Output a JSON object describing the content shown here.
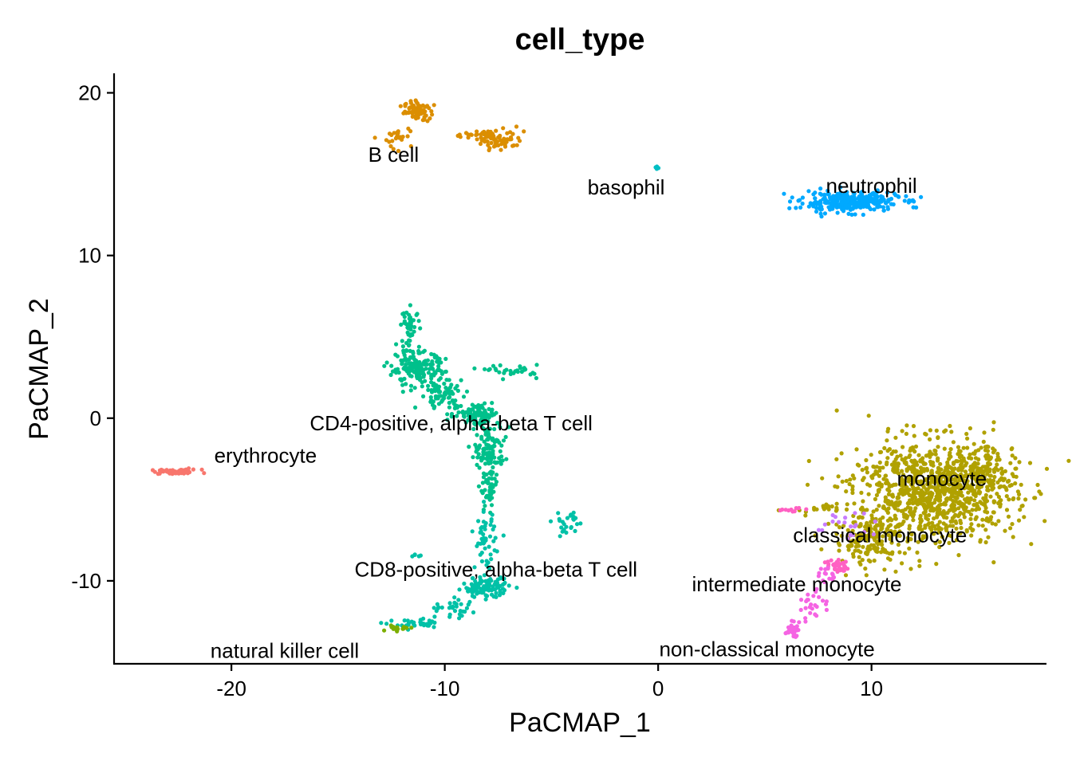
{
  "chart_data": {
    "type": "scatter",
    "title": "cell_type",
    "xlabel": "PaCMAP_1",
    "ylabel": "PaCMAP_2",
    "xlim": [
      -25.5,
      18.2
    ],
    "ylim": [
      -15.1,
      21.2
    ],
    "x_ticks": [
      -20,
      -10,
      0,
      10
    ],
    "y_ticks": [
      20,
      10,
      0,
      -10
    ],
    "x_tick_labels": [
      "-20",
      "-10",
      "0",
      "10"
    ],
    "y_tick_labels": [
      "20",
      "10",
      "0",
      "-10"
    ],
    "grid": false,
    "legend": "none",
    "series": [
      {
        "name": "erythrocyte",
        "color": "#F8766D",
        "label_at": [
          -18.4,
          -2.3
        ],
        "clusters": [
          {
            "cx": -22.6,
            "cy": -3.3,
            "rx": 1.0,
            "ry": 0.12,
            "n": 60
          }
        ]
      },
      {
        "name": "B cell",
        "color": "#DB8E00",
        "label_at": [
          -12.4,
          16.2
        ],
        "clusters": [
          {
            "cx": -11.3,
            "cy": 18.9,
            "rx": 0.5,
            "ry": 0.5,
            "n": 70
          },
          {
            "cx": -12.1,
            "cy": 17.3,
            "rx": 0.6,
            "ry": 0.7,
            "n": 25
          },
          {
            "cx": -7.4,
            "cy": 17.2,
            "rx": 0.9,
            "ry": 0.6,
            "n": 60
          },
          {
            "cx": -8.8,
            "cy": 17.4,
            "rx": 0.7,
            "ry": 0.2,
            "n": 20
          }
        ]
      },
      {
        "name": "basophil",
        "color": "#00BFC4",
        "label_at": [
          -1.5,
          14.2
        ],
        "clusters": [
          {
            "cx": -0.1,
            "cy": 15.4,
            "rx": 0.08,
            "ry": 0.1,
            "n": 4
          }
        ]
      },
      {
        "name": "neutrophil",
        "color": "#00A9FF",
        "label_at": [
          10.0,
          14.3
        ],
        "clusters": [
          {
            "cx": 9.0,
            "cy": 13.3,
            "rx": 1.9,
            "ry": 0.5,
            "n": 320
          }
        ]
      },
      {
        "name": "CD4-positive, alpha-beta T cell",
        "color": "#00C08B",
        "label_at": [
          -9.7,
          -0.3
        ],
        "clusters": [
          {
            "cx": -11.3,
            "cy": 3.0,
            "rx": 1.1,
            "ry": 0.9,
            "n": 160
          },
          {
            "cx": -11.6,
            "cy": 5.6,
            "rx": 0.35,
            "ry": 1.0,
            "n": 45
          },
          {
            "cx": -10.1,
            "cy": 1.5,
            "rx": 0.9,
            "ry": 0.8,
            "n": 70
          },
          {
            "cx": -8.5,
            "cy": 0.3,
            "rx": 0.9,
            "ry": 0.6,
            "n": 90
          },
          {
            "cx": -7.9,
            "cy": -1.8,
            "rx": 0.6,
            "ry": 1.2,
            "n": 110
          },
          {
            "cx": -7.9,
            "cy": -4.3,
            "rx": 0.35,
            "ry": 1.2,
            "n": 50
          },
          {
            "cx": -6.8,
            "cy": 2.9,
            "rx": 1.0,
            "ry": 0.3,
            "n": 30
          }
        ]
      },
      {
        "name": "CD8-positive, alpha-beta T cell",
        "color": "#00C1A7",
        "label_at": [
          -7.6,
          -9.3
        ],
        "clusters": [
          {
            "cx": -8.1,
            "cy": -10.4,
            "rx": 0.9,
            "ry": 0.5,
            "n": 110
          },
          {
            "cx": -8.1,
            "cy": -7.5,
            "rx": 0.4,
            "ry": 1.4,
            "n": 50
          },
          {
            "cx": -9.6,
            "cy": -11.7,
            "rx": 1.2,
            "ry": 0.5,
            "n": 30
          },
          {
            "cx": -11.2,
            "cy": -12.7,
            "rx": 1.0,
            "ry": 0.25,
            "n": 35
          },
          {
            "cx": -4.2,
            "cy": -6.5,
            "rx": 0.6,
            "ry": 0.9,
            "n": 25
          },
          {
            "cx": -11.3,
            "cy": -8.4,
            "rx": 0.3,
            "ry": 0.1,
            "n": 5
          }
        ]
      },
      {
        "name": "natural killer cell",
        "color": "#7CAE00",
        "label_at": [
          -17.5,
          -14.3
        ],
        "clusters": [
          {
            "cx": -12.2,
            "cy": -12.9,
            "rx": 0.5,
            "ry": 0.15,
            "n": 18
          }
        ]
      },
      {
        "name": "monocyte",
        "color": "#B0A100",
        "label_at": [
          13.3,
          -3.7
        ],
        "clusters": [
          {
            "cx": 12.9,
            "cy": -4.5,
            "rx": 3.2,
            "ry": 2.6,
            "n": 950
          },
          {
            "cx": 9.9,
            "cy": -7.5,
            "rx": 1.4,
            "ry": 1.3,
            "n": 150
          },
          {
            "cx": 7.5,
            "cy": -5.6,
            "rx": 1.1,
            "ry": 0.25,
            "n": 20
          },
          {
            "cx": 15.1,
            "cy": -3.4,
            "rx": 1.0,
            "ry": 1.4,
            "n": 100
          }
        ]
      },
      {
        "name": "classical monocyte",
        "color": "#C77CFF",
        "label_at": [
          10.4,
          -7.2
        ],
        "clusters": [
          {
            "cx": 8.8,
            "cy": -6.6,
            "rx": 1.2,
            "ry": 0.7,
            "n": 20
          }
        ]
      },
      {
        "name": "intermediate monocyte",
        "color": "#FF61C3",
        "label_at": [
          6.5,
          -10.2
        ],
        "clusters": [
          {
            "cx": 8.4,
            "cy": -9.1,
            "rx": 0.4,
            "ry": 0.35,
            "n": 35
          },
          {
            "cx": 6.2,
            "cy": -5.6,
            "rx": 0.5,
            "ry": 0.1,
            "n": 10
          }
        ]
      },
      {
        "name": "non-classical monocyte",
        "color": "#F564E3",
        "label_at": [
          5.1,
          -14.2
        ],
        "clusters": [
          {
            "cx": 6.3,
            "cy": -13.0,
            "rx": 0.25,
            "ry": 0.35,
            "n": 30
          },
          {
            "cx": 7.1,
            "cy": -11.5,
            "rx": 0.6,
            "ry": 0.8,
            "n": 25
          },
          {
            "cx": 8.0,
            "cy": -9.6,
            "rx": 0.35,
            "ry": 0.5,
            "n": 15
          }
        ]
      }
    ]
  }
}
